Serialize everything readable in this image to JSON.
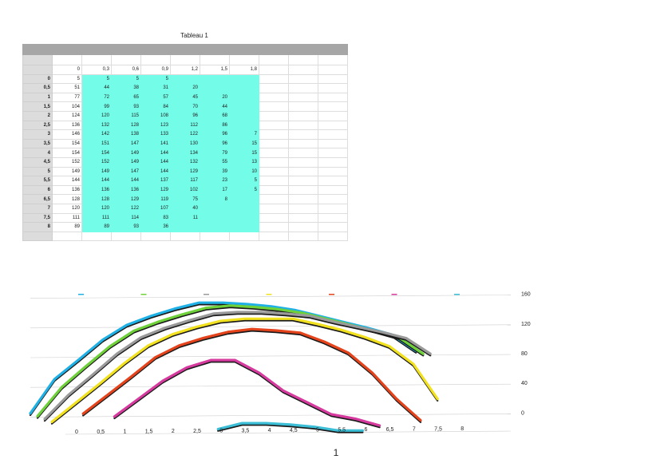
{
  "page": {
    "title": "Tableau 1",
    "page_number": "1"
  },
  "table": {
    "columns": [
      "0",
      "0,3",
      "0,6",
      "0,9",
      "1,2",
      "1,5",
      "1,8"
    ],
    "rows": [
      {
        "label": "0",
        "values": [
          "5",
          "5",
          "5",
          "5",
          "",
          "",
          ""
        ]
      },
      {
        "label": "0,5",
        "values": [
          "51",
          "44",
          "38",
          "31",
          "20",
          "",
          ""
        ]
      },
      {
        "label": "1",
        "values": [
          "77",
          "72",
          "65",
          "57",
          "45",
          "20",
          ""
        ]
      },
      {
        "label": "1,5",
        "values": [
          "104",
          "99",
          "93",
          "84",
          "70",
          "44",
          ""
        ]
      },
      {
        "label": "2",
        "values": [
          "124",
          "120",
          "115",
          "108",
          "96",
          "68",
          ""
        ]
      },
      {
        "label": "2,5",
        "values": [
          "136",
          "132",
          "128",
          "123",
          "112",
          "86",
          ""
        ]
      },
      {
        "label": "3",
        "values": [
          "146",
          "142",
          "138",
          "133",
          "122",
          "96",
          "7"
        ]
      },
      {
        "label": "3,5",
        "values": [
          "154",
          "151",
          "147",
          "141",
          "130",
          "96",
          "15"
        ]
      },
      {
        "label": "4",
        "values": [
          "154",
          "154",
          "149",
          "144",
          "134",
          "79",
          "15"
        ]
      },
      {
        "label": "4,5",
        "values": [
          "152",
          "152",
          "149",
          "144",
          "132",
          "55",
          "13"
        ]
      },
      {
        "label": "5",
        "values": [
          "149",
          "149",
          "147",
          "144",
          "129",
          "39",
          "10"
        ]
      },
      {
        "label": "5,5",
        "values": [
          "144",
          "144",
          "144",
          "137",
          "117",
          "23",
          "5"
        ]
      },
      {
        "label": "6",
        "values": [
          "136",
          "136",
          "136",
          "129",
          "102",
          "17",
          "5"
        ]
      },
      {
        "label": "6,5",
        "values": [
          "128",
          "128",
          "129",
          "119",
          "75",
          "8",
          ""
        ]
      },
      {
        "label": "7",
        "values": [
          "120",
          "120",
          "122",
          "107",
          "40",
          "",
          ""
        ]
      },
      {
        "label": "7,5",
        "values": [
          "111",
          "111",
          "114",
          "83",
          "11",
          "",
          ""
        ]
      },
      {
        "label": "8",
        "values": [
          "89",
          "89",
          "93",
          "36",
          "",
          "",
          ""
        ]
      }
    ]
  },
  "chart_data": {
    "type": "line",
    "style": "3d-perspective",
    "x": [
      "0",
      "0,5",
      "1",
      "1,5",
      "2",
      "2,5",
      "3",
      "3,5",
      "4",
      "4,5",
      "5",
      "5,5",
      "6",
      "6,5",
      "7",
      "7,5",
      "8"
    ],
    "y_ticks": [
      "0",
      "40",
      "80",
      "120",
      "160"
    ],
    "ylim": [
      0,
      160
    ],
    "legend_placement": "top",
    "series": [
      {
        "color": "#1fb0e6",
        "values": [
          5,
          51,
          77,
          104,
          124,
          136,
          146,
          154,
          154,
          152,
          149,
          144,
          136,
          128,
          120,
          111,
          89
        ]
      },
      {
        "color": "#6fd13a",
        "values": [
          5,
          44,
          72,
          99,
          120,
          132,
          142,
          151,
          154,
          152,
          149,
          144,
          136,
          128,
          120,
          111,
          89
        ]
      },
      {
        "color": "#9a9a9a",
        "values": [
          5,
          38,
          65,
          93,
          115,
          128,
          138,
          147,
          149,
          149,
          147,
          144,
          136,
          129,
          122,
          114,
          93
        ]
      },
      {
        "color": "#f2e11e",
        "values": [
          5,
          31,
          57,
          84,
          108,
          123,
          133,
          141,
          144,
          144,
          144,
          137,
          129,
          119,
          107,
          83,
          36
        ]
      },
      {
        "color": "#e5431b",
        "values": [
          null,
          20,
          45,
          70,
          96,
          112,
          122,
          130,
          134,
          132,
          129,
          117,
          102,
          75,
          40,
          11,
          null
        ]
      },
      {
        "color": "#d63a9e",
        "values": [
          null,
          null,
          20,
          44,
          68,
          86,
          96,
          96,
          79,
          55,
          39,
          23,
          17,
          8,
          null,
          null,
          null
        ]
      },
      {
        "color": "#3cbfd6",
        "values": [
          null,
          null,
          null,
          null,
          null,
          null,
          7,
          15,
          15,
          13,
          10,
          5,
          5,
          null,
          null,
          null,
          null
        ]
      }
    ]
  }
}
